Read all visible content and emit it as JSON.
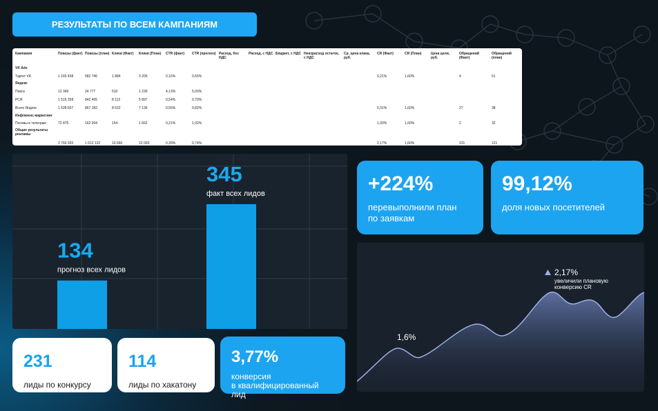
{
  "header": {
    "title": "РЕЗУЛЬТАТЫ ПО ВСЕМ КАМПАНИЯМ"
  },
  "table": {
    "columns": [
      "Кампания",
      "Показы (факт)",
      "Показы (план)",
      "Клики (Факт)",
      "Клики (План)",
      "CTR (факт)",
      "CTR (прогноз)",
      "Расход, без НДС",
      "Расход, с НДС",
      "Бюджет, с НДС",
      "Неизрасход остаток, с НДС",
      "Ср. цена клика, руб.",
      "CR (Факт)",
      "CR (План)",
      "Цена цели, руб.",
      "Обращений (Факт)",
      "Обращений (план)"
    ],
    "rows": [
      [
        "VK Ads",
        null,
        null,
        null,
        null,
        null,
        null,
        null,
        null,
        null,
        null,
        null,
        null,
        null,
        null,
        null,
        null
      ],
      [
        "Таргет VK",
        "1 165 438",
        "582 746",
        "1 884",
        "3 205",
        "0,16%",
        "0,55%",
        null,
        null,
        null,
        null,
        null,
        "0,21%",
        "1,60%",
        null,
        "4",
        "51"
      ],
      [
        "Яндекс",
        null,
        null,
        null,
        null,
        null,
        null,
        null,
        null,
        null,
        null,
        null,
        null,
        null,
        null,
        null,
        null
      ],
      [
        "Поиск",
        "12 349",
        "24 777",
        "510",
        "1 239",
        "4,13%",
        "5,00%",
        null,
        null,
        null,
        null,
        null,
        null,
        null,
        null,
        null,
        null
      ],
      [
        "РСЯ",
        "1 516 258",
        "842 405",
        "8 112",
        "5 897",
        "0,54%",
        "0,70%",
        null,
        null,
        null,
        null,
        null,
        null,
        null,
        null,
        null,
        null
      ],
      [
        "Всего Яндекс",
        "1 528 607",
        "867 182",
        "8 622",
        "7 136",
        "0,56%",
        "0,82%",
        null,
        null,
        null,
        null,
        null,
        "0,31%",
        "1,60%",
        null,
        "27",
        "38"
      ],
      [
        "Инфлюенс-маркетинг",
        null,
        null,
        null,
        null,
        null,
        null,
        null,
        null,
        null,
        null,
        null,
        null,
        null,
        null,
        null,
        null
      ],
      [
        "Посевы в телеграм",
        "72 875",
        "162 204",
        "154",
        "1 662",
        "0,21%",
        "1,02%",
        null,
        null,
        null,
        null,
        null,
        "1,30%",
        "1,60%",
        null,
        "2",
        "32"
      ],
      [
        "Общие результаты рекламы",
        null,
        null,
        null,
        null,
        null,
        null,
        null,
        null,
        null,
        null,
        null,
        null,
        null,
        null,
        null,
        null
      ],
      [
        null,
        "2 766 920",
        "1 612 132",
        "10 660",
        "12 003",
        "0,39%",
        "0,74%",
        null,
        null,
        null,
        null,
        null,
        "2,17%",
        "1,60%",
        null,
        "231",
        "121"
      ]
    ]
  },
  "chart_data": {
    "type": "bar",
    "categories": [
      "прогноз всех лидов",
      "факт всех лидов"
    ],
    "values": [
      134,
      345
    ],
    "ylim": [
      0,
      450
    ],
    "color": "#0f9fe6"
  },
  "cards": [
    {
      "value": "+224%",
      "label": [
        "перевыполнили план",
        "по заявкам"
      ]
    },
    {
      "value": "99,12%",
      "label": [
        "доля новых посетителей"
      ]
    },
    {
      "value": "231",
      "label": [
        "лиды по конкурсу"
      ]
    },
    {
      "value": "114",
      "label": [
        "лиды по хакатону"
      ]
    },
    {
      "value": "3,77%",
      "label": [
        "конверсия",
        "в квалифицированный лид"
      ]
    }
  ],
  "area": {
    "start_label": "1,6%",
    "end_label": "2,17%",
    "end_note": [
      "увеличили плановую",
      "конверсию CR"
    ]
  }
}
